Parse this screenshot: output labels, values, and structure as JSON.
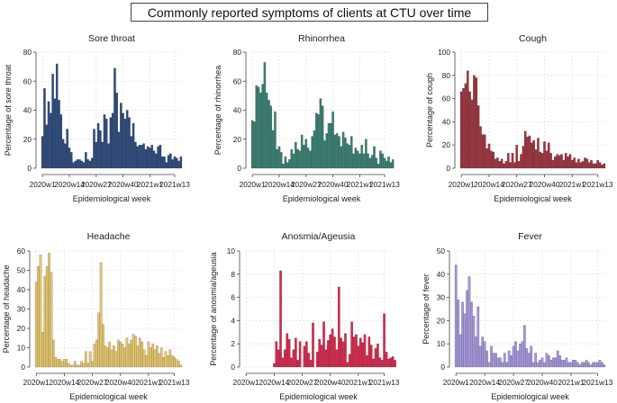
{
  "title": "Commonly reported symptoms of clients at CTU over time",
  "chart_data": [
    {
      "type": "bar",
      "title": "Sore throat",
      "xlabel": "Epidemiological week",
      "ylabel": "Percentage of sore throat",
      "color": "#2f4b7c",
      "ylim": [
        0,
        80
      ],
      "yticks": [
        0,
        20,
        40,
        60,
        80
      ],
      "xtick_labels": [
        "2020w1",
        "2020w14",
        "2020w27",
        "2020w40",
        "2021w1",
        "2021w13"
      ],
      "xtick_weeks": [
        1,
        14,
        27,
        40,
        53,
        65
      ],
      "start_week": 1,
      "values": [
        22,
        55,
        30,
        46,
        38,
        65,
        48,
        72,
        47,
        37,
        20,
        17,
        27,
        14,
        11,
        4,
        5,
        6,
        6,
        5,
        4,
        11,
        6,
        5,
        7,
        27,
        18,
        31,
        26,
        18,
        37,
        34,
        17,
        35,
        38,
        69,
        52,
        25,
        45,
        38,
        34,
        40,
        35,
        22,
        31,
        18,
        15,
        16,
        16,
        17,
        13,
        15,
        14,
        16,
        12,
        10,
        15,
        16,
        8,
        8,
        4,
        9,
        10,
        6,
        8,
        7,
        5,
        8
      ]
    },
    {
      "type": "bar",
      "title": "Rhinorrhea",
      "xlabel": "Epidemiological week",
      "ylabel": "Percentage of rhinorrhea",
      "color": "#3b7f72",
      "ylim": [
        0,
        80
      ],
      "yticks": [
        0,
        20,
        40,
        60,
        80
      ],
      "xtick_labels": [
        "2020w1",
        "2020w14",
        "2020w27",
        "2020w40",
        "2021w1",
        "2021w13"
      ],
      "xtick_weeks": [
        1,
        14,
        27,
        40,
        53,
        65
      ],
      "start_week": 1,
      "values": [
        33,
        32,
        57,
        56,
        52,
        58,
        73,
        52,
        47,
        43,
        26,
        39,
        13,
        15,
        11,
        3,
        8,
        4,
        6,
        13,
        10,
        18,
        13,
        12,
        23,
        16,
        20,
        14,
        12,
        22,
        26,
        38,
        37,
        48,
        43,
        19,
        24,
        31,
        31,
        39,
        23,
        24,
        22,
        15,
        25,
        21,
        17,
        16,
        22,
        10,
        14,
        12,
        10,
        16,
        10,
        20,
        10,
        7,
        9,
        15,
        7,
        3,
        12,
        10,
        7,
        5,
        8,
        4,
        6
      ]
    },
    {
      "type": "bar",
      "title": "Cough",
      "xlabel": "Epidemiological week",
      "ylabel": "Percentage of cough",
      "color": "#9c3540",
      "ylim": [
        0,
        100
      ],
      "yticks": [
        0,
        20,
        40,
        60,
        80,
        100
      ],
      "xtick_labels": [
        "2020w1",
        "2020w14",
        "2020w27",
        "2020w40",
        "2021w1",
        "2021w13"
      ],
      "xtick_weeks": [
        1,
        14,
        27,
        40,
        53,
        65
      ],
      "start_week": 1,
      "values": [
        66,
        69,
        73,
        84,
        66,
        59,
        80,
        78,
        54,
        36,
        29,
        29,
        17,
        21,
        15,
        14,
        8,
        9,
        6,
        8,
        4,
        6,
        13,
        5,
        13,
        5,
        20,
        6,
        12,
        19,
        32,
        27,
        28,
        22,
        24,
        16,
        26,
        14,
        13,
        23,
        15,
        22,
        13,
        7,
        10,
        12,
        11,
        12,
        7,
        13,
        10,
        12,
        7,
        9,
        5,
        8,
        5,
        6,
        9,
        8,
        5,
        7,
        4,
        4,
        7,
        5,
        3,
        4
      ]
    },
    {
      "type": "bar",
      "title": "Headache",
      "xlabel": "Epidemiological week",
      "ylabel": "Percentage of headache",
      "color": "#e3c46e",
      "ylim": [
        0,
        60
      ],
      "yticks": [
        0,
        10,
        20,
        30,
        40,
        50,
        60
      ],
      "xtick_labels": [
        "2020w1",
        "2020w14",
        "2020w27",
        "2020w40",
        "2021w1",
        "2021w13"
      ],
      "xtick_weeks": [
        1,
        14,
        27,
        40,
        53,
        65
      ],
      "start_week": 1,
      "values": [
        44,
        52,
        58,
        18,
        47,
        52,
        59,
        49,
        14,
        5,
        4,
        4,
        3,
        4,
        4,
        2,
        1,
        1,
        3,
        1,
        1,
        3,
        2,
        8,
        2,
        8,
        3,
        12,
        14,
        28,
        54,
        22,
        11,
        10,
        13,
        9,
        11,
        8,
        14,
        13,
        12,
        10,
        15,
        12,
        14,
        17,
        16,
        11,
        15,
        13,
        9,
        6,
        13,
        10,
        12,
        9,
        11,
        7,
        10,
        5,
        8,
        6,
        9,
        6,
        5,
        4,
        3,
        1
      ]
    },
    {
      "type": "bar",
      "title": "Anosmia/Ageusia",
      "xlabel": "Epidemiological week",
      "ylabel": "Percentage of anosmia/ageusia",
      "color": "#d42a4d",
      "ylim": [
        0,
        10
      ],
      "yticks": [
        0,
        2,
        4,
        6,
        8,
        10
      ],
      "xtick_labels": [
        "2020w1",
        "2020w14",
        "2020w27",
        "2020w40",
        "2021w1",
        "2021w13"
      ],
      "xtick_weeks": [
        1,
        14,
        27,
        40,
        53,
        65
      ],
      "start_week": 10,
      "values": [
        0,
        0,
        0,
        0,
        0.3,
        2.2,
        1.5,
        8.3,
        0.8,
        1.5,
        2.9,
        2.4,
        0.8,
        1.5,
        2.5,
        0.6,
        2.2,
        0,
        1.8,
        2.2,
        1.2,
        0.6,
        3.8,
        0,
        1.3,
        2.4,
        1.9,
        3.9,
        1.5,
        2.3,
        2.8,
        3.3,
        2.6,
        1.5,
        6.9,
        2.5,
        2.2,
        2.9,
        0.4,
        1.1,
        3.9,
        2.6,
        2.8,
        1.8,
        2.5,
        2.1,
        2.8,
        1,
        2.6,
        1.9,
        0.7,
        1.6,
        2,
        0.8,
        0.6,
        4.6,
        1.3,
        0.7,
        0.8,
        0.9,
        0.6
      ]
    },
    {
      "type": "bar",
      "title": "Fever",
      "xlabel": "Epidemiological week",
      "ylabel": "Percentage of fever",
      "color": "#a495d9",
      "ylim": [
        0,
        50
      ],
      "yticks": [
        0,
        10,
        20,
        30,
        40,
        50
      ],
      "xtick_labels": [
        "2020w1",
        "2020w14",
        "2020w27",
        "2020w40",
        "2021w1",
        "2021w13"
      ],
      "xtick_weeks": [
        1,
        14,
        27,
        40,
        53,
        65
      ],
      "start_week": 1,
      "values": [
        44,
        29,
        14,
        28,
        23,
        33,
        39,
        28,
        22,
        13,
        26,
        9,
        13,
        11,
        7,
        2,
        9,
        6,
        6,
        4,
        4,
        2,
        6,
        2,
        7,
        5,
        9,
        11,
        7,
        10,
        11,
        18,
        8,
        6,
        9,
        2,
        6,
        2,
        3,
        4,
        2,
        6,
        5,
        3,
        4,
        4,
        7,
        5,
        3,
        3,
        4,
        2,
        2,
        3,
        3,
        2,
        1,
        2,
        2,
        3,
        2,
        1,
        2,
        2,
        2,
        3,
        2,
        1
      ]
    }
  ]
}
